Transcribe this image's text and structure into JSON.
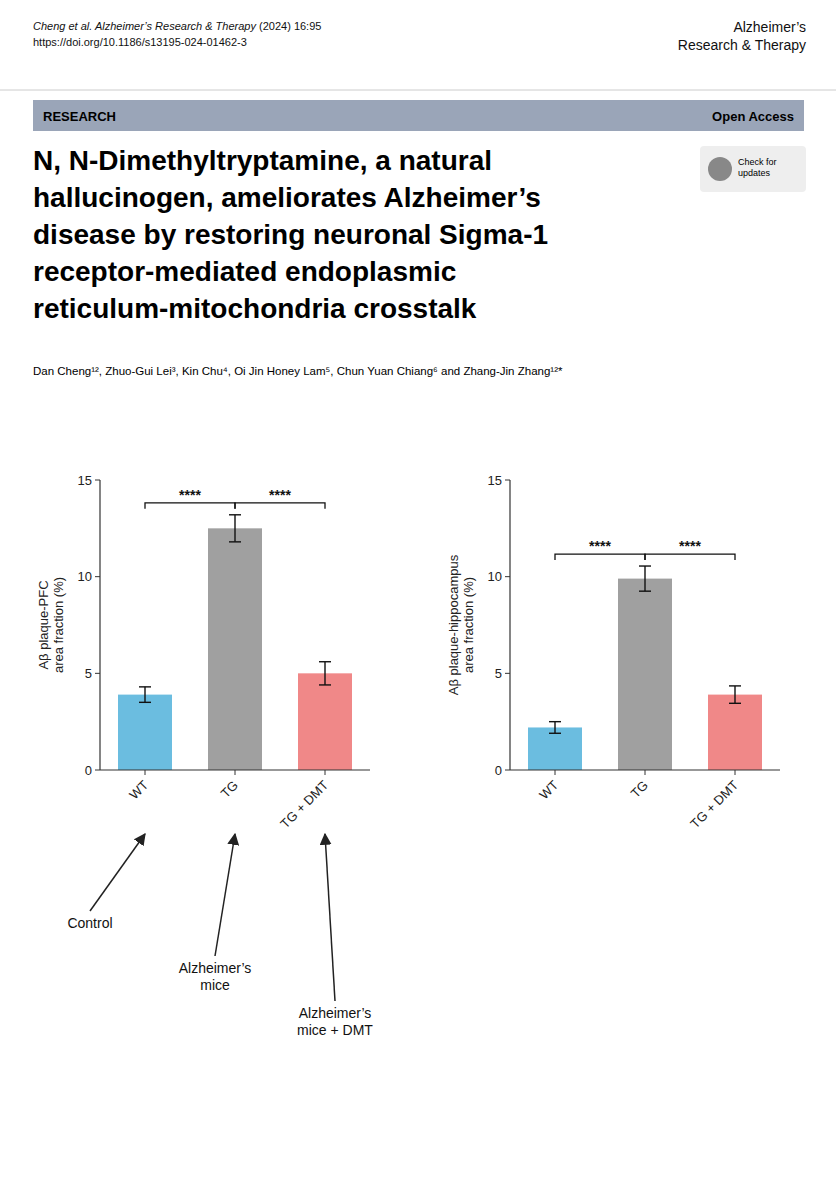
{
  "page": {
    "header_left_italic": "Cheng et al. Alzheimer’s Research & Therapy",
    "header_left_normal": "(2024) 16:95",
    "header_left_doi": "https://doi.org/10.1186/s13195-024-01462-3",
    "header_right_line1": "Alzheimer’s",
    "header_right_line2": "Research & Therapy",
    "banner_left": "RESEARCH",
    "banner_right": "Open Access",
    "banner_color": "#9aa5b8",
    "title_lines": [
      "N, N-Dimethyltryptamine, a natural",
      "hallucinogen, ameliorates Alzheimer’s",
      "disease by restoring neuronal Sigma-1",
      "receptor-mediated endoplasmic",
      "reticulum-mitochondria crosstalk"
    ],
    "check_updates": "Check for\nupdates",
    "authors": "Dan Cheng¹², Zhuo-Gui Lei³, Kin Chu⁴, Oi Jin Honey Lam⁵, Chun Yuan Chiang⁶ and Zhang-Jin Zhang¹²*"
  },
  "chart_data": [
    {
      "type": "bar",
      "ylabel": "Aβ plaque-PFC\narea fraction (%)",
      "categories": [
        "WT",
        "TG",
        "TG + DMT"
      ],
      "values": [
        3.9,
        12.5,
        5.0
      ],
      "errors": [
        0.4,
        0.7,
        0.6
      ],
      "colors": [
        "#6bbde0",
        "#a0a0a0",
        "#f08888"
      ],
      "ylim": [
        0,
        15
      ],
      "yticks": [
        0,
        5,
        10,
        15
      ],
      "annotations": [
        {
          "text": "****",
          "bracket": [
            "WT",
            "TG"
          ]
        },
        {
          "text": "****",
          "bracket": [
            "TG",
            "TG + DMT"
          ]
        },
        {
          "text": "Control",
          "arrow_to": "WT"
        },
        {
          "text": "Alzheimer’s\nmice",
          "arrow_to": "TG"
        },
        {
          "text": "Alzheimer’s\nmice + DMT",
          "arrow_to": "TG + DMT"
        }
      ]
    },
    {
      "type": "bar",
      "ylabel": "Aβ plaque-hippocampus\narea fraction (%)",
      "categories": [
        "WT",
        "TG",
        "TG + DMT"
      ],
      "values": [
        2.2,
        9.9,
        3.9
      ],
      "errors": [
        0.3,
        0.65,
        0.45
      ],
      "colors": [
        "#6bbde0",
        "#a0a0a0",
        "#f08888"
      ],
      "ylim": [
        0,
        15
      ],
      "yticks": [
        0,
        5,
        10,
        15
      ],
      "annotations": [
        {
          "text": "****",
          "bracket": [
            "WT",
            "TG"
          ]
        },
        {
          "text": "****",
          "bracket": [
            "TG",
            "TG + DMT"
          ]
        }
      ]
    }
  ]
}
